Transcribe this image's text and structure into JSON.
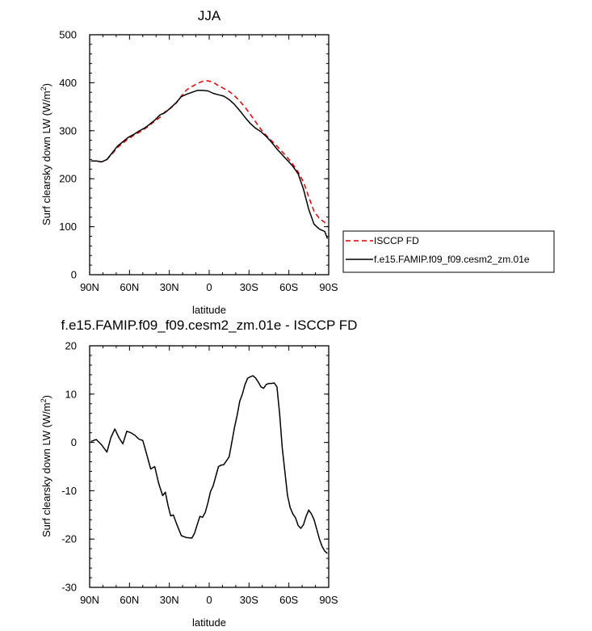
{
  "chart_data": [
    {
      "type": "line",
      "title": "JJA",
      "xlabel": "latitude",
      "ylabel": "Surf clearsky down LW (W/m",
      "ylabel_sup": "2",
      "ylabel_end": ")",
      "xlim": [
        90,
        -90
      ],
      "ylim": [
        0,
        500
      ],
      "xticks": [
        90,
        60,
        30,
        0,
        -30,
        -60,
        -90
      ],
      "xticklabels": [
        "90N",
        "60N",
        "30N",
        "0",
        "30S",
        "60S",
        "90S"
      ],
      "yticks": [
        0,
        100,
        200,
        300,
        400,
        500
      ],
      "yticklabels": [
        "0",
        "100",
        "200",
        "300",
        "400",
        "500"
      ],
      "legend": "right",
      "series": [
        {
          "name": "ISCCP FD",
          "color": "#e00000",
          "dash": "dashed",
          "x": [
            89,
            85,
            81,
            77,
            73,
            69,
            65,
            61,
            57,
            53,
            49,
            45,
            41,
            37,
            33,
            29,
            25,
            21,
            17,
            13,
            9,
            5,
            1,
            -3,
            -7,
            -11,
            -15,
            -19,
            -23,
            -27,
            -31,
            -35,
            -39,
            -43,
            -47,
            -51,
            -55,
            -59,
            -63,
            -67,
            -71,
            -75,
            -79,
            -83,
            -87,
            -89
          ],
          "y": [
            237,
            237,
            235,
            240,
            252,
            265,
            274,
            283,
            290,
            296,
            303,
            311,
            320,
            328,
            340,
            347,
            357,
            372,
            385,
            392,
            398,
            403,
            404,
            401,
            394,
            388,
            382,
            373,
            362,
            349,
            334,
            318,
            303,
            290,
            279,
            268,
            256,
            244,
            230,
            214,
            193,
            162,
            132,
            117,
            109,
            102
          ]
        },
        {
          "name": "f.e15.FAMIP.f09_f09.cesm2_zm.01e",
          "color": "#000000",
          "dash": "solid",
          "x": [
            89,
            85,
            81,
            77,
            73,
            69,
            65,
            61,
            57,
            53,
            49,
            45,
            41,
            37,
            33,
            29,
            25,
            21,
            17,
            13,
            9,
            5,
            1,
            -3,
            -7,
            -11,
            -15,
            -19,
            -23,
            -27,
            -31,
            -35,
            -39,
            -43,
            -47,
            -51,
            -55,
            -59,
            -63,
            -67,
            -71,
            -75,
            -79,
            -83,
            -87,
            -89
          ],
          "y": [
            237,
            237,
            235,
            240,
            254,
            268,
            277,
            286,
            292,
            299,
            305,
            313,
            322,
            333,
            338,
            348,
            358,
            371,
            376,
            380,
            384,
            384,
            383,
            378,
            375,
            372,
            365,
            355,
            342,
            328,
            315,
            305,
            298,
            288,
            276,
            262,
            250,
            238,
            226,
            210,
            178,
            136,
            105,
            95,
            90,
            75
          ]
        }
      ]
    },
    {
      "type": "line",
      "title": "f.e15.FAMIP.f09_f09.cesm2_zm.01e - ISCCP FD",
      "xlabel": "latitude",
      "ylabel": "Surf clearsky down LW (W/m",
      "ylabel_sup": "2",
      "ylabel_end": ")",
      "xlim": [
        90,
        -90
      ],
      "ylim": [
        -30,
        20
      ],
      "xticks": [
        90,
        60,
        30,
        0,
        -30,
        -60,
        -90
      ],
      "xticklabels": [
        "90N",
        "60N",
        "30N",
        "0",
        "30S",
        "60S",
        "90S"
      ],
      "yticks": [
        -30,
        -20,
        -10,
        0,
        10,
        20
      ],
      "yticklabels": [
        "-30",
        "-20",
        "-10",
        "0",
        "10",
        "20"
      ],
      "series": [
        {
          "color": "#000000",
          "dash": "solid",
          "x": [
            89,
            85,
            81,
            77,
            74,
            71,
            68,
            65,
            62,
            59,
            56,
            53,
            50,
            47,
            44,
            41,
            38,
            35,
            33,
            31,
            29,
            27,
            25,
            21,
            17,
            13,
            11,
            9,
            7,
            5,
            3,
            1,
            -1,
            -3,
            -5,
            -7,
            -9,
            -11,
            -13,
            -15,
            -17,
            -19,
            -21,
            -23,
            -25,
            -27,
            -29,
            -31,
            -33,
            -35,
            -37,
            -39,
            -41,
            -43,
            -45,
            -47,
            -49,
            -51,
            -53,
            -55,
            -57,
            -59,
            -61,
            -63,
            -65,
            -67,
            -69,
            -71,
            -73,
            -75,
            -77,
            -79,
            -81,
            -83,
            -85,
            -87,
            -89
          ],
          "y": [
            0.2,
            0.6,
            -0.5,
            -2.0,
            1.0,
            2.8,
            1.0,
            -0.3,
            2.3,
            2.0,
            1.5,
            0.7,
            0.4,
            -2.5,
            -5.5,
            -5.0,
            -8.5,
            -11.0,
            -10.3,
            -13.0,
            -15.2,
            -15.0,
            -16.5,
            -19.3,
            -19.7,
            -19.8,
            -18.8,
            -17.0,
            -15.3,
            -15.5,
            -14.5,
            -12.5,
            -10.2,
            -9.0,
            -7.0,
            -5.0,
            -4.7,
            -4.6,
            -3.8,
            -3.0,
            0.0,
            3.0,
            5.5,
            8.5,
            10.0,
            12.0,
            13.3,
            13.6,
            13.8,
            13.3,
            12.5,
            11.5,
            11.2,
            12.0,
            12.2,
            12.2,
            12.3,
            11.5,
            6.0,
            -1.0,
            -6.0,
            -11.0,
            -13.5,
            -14.8,
            -15.6,
            -17.2,
            -17.8,
            -17.0,
            -15.3,
            -14.0,
            -14.8,
            -16.0,
            -18.0,
            -20.0,
            -21.5,
            -22.5,
            -23.0
          ]
        }
      ]
    }
  ]
}
